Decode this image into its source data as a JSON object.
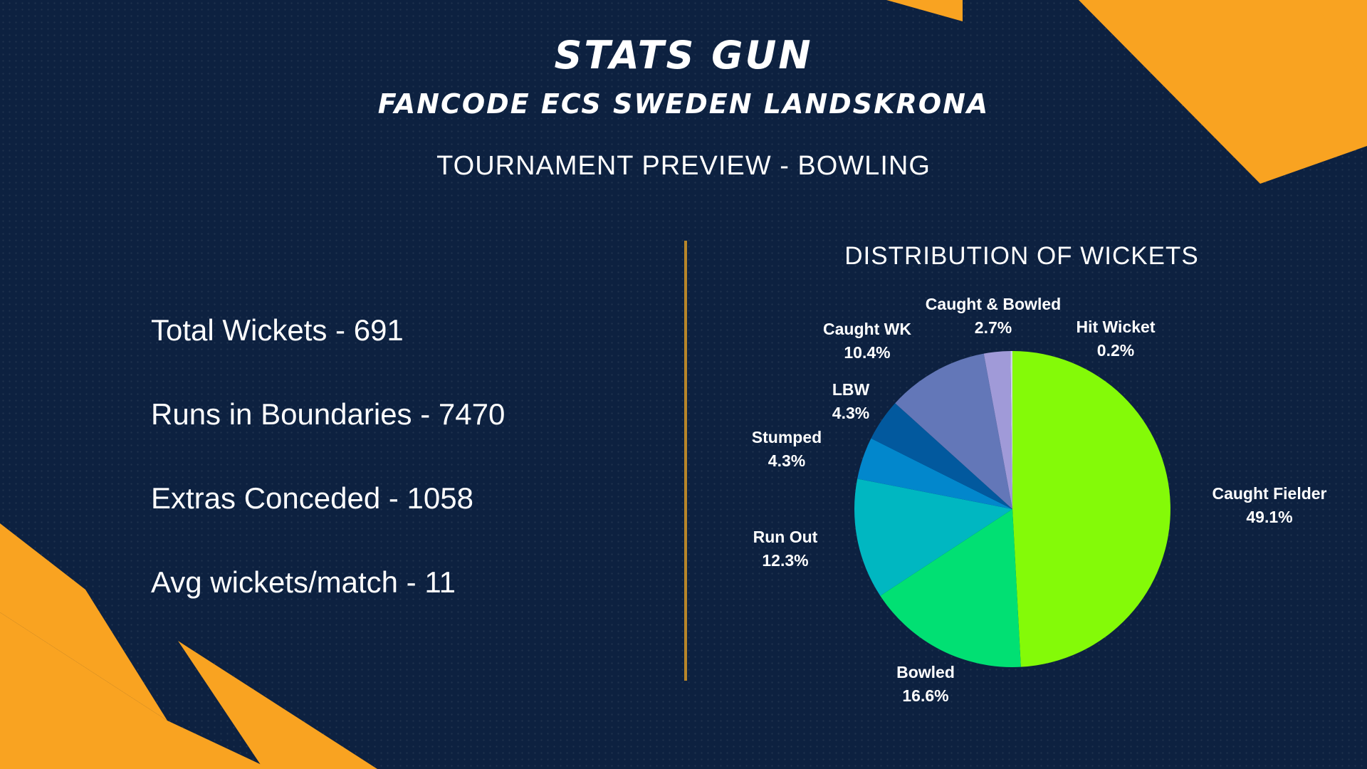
{
  "header": {
    "title": "STATS GUN",
    "subtitle": "FANCODE ECS SWEDEN LANDSKRONA",
    "section": "TOURNAMENT PREVIEW - BOWLING"
  },
  "stats": [
    "Total Wickets - 691",
    "Runs in Boundaries - 7470",
    "Extras Conceded - 1058",
    "Avg wickets/match - 11"
  ],
  "colors": {
    "background": "#0d2140",
    "accent": "#f9a321",
    "divider": "#b8862a"
  },
  "chart_data": {
    "type": "pie",
    "title": "DISTRIBUTION OF WICKETS",
    "slices": [
      {
        "label": "Caught Fielder",
        "value": 49.1,
        "value_label": "49.1%",
        "color": "#84fa08"
      },
      {
        "label": "Bowled",
        "value": 16.6,
        "value_label": "16.6%",
        "color": "#01e073"
      },
      {
        "label": "Run Out",
        "value": 12.3,
        "value_label": "12.3%",
        "color": "#00b7c1"
      },
      {
        "label": "Stumped",
        "value": 4.3,
        "value_label": "4.3%",
        "color": "#0287cc"
      },
      {
        "label": "LBW",
        "value": 4.3,
        "value_label": "4.3%",
        "color": "#02599e"
      },
      {
        "label": "Caught WK",
        "value": 10.4,
        "value_label": "10.4%",
        "color": "#6377b8"
      },
      {
        "label": "Caught & Bowled",
        "value": 2.7,
        "value_label": "2.7%",
        "color": "#a09ad8"
      },
      {
        "label": "Hit Wicket",
        "value": 0.2,
        "value_label": "0.2%",
        "color": "#d0d0e8"
      }
    ]
  }
}
